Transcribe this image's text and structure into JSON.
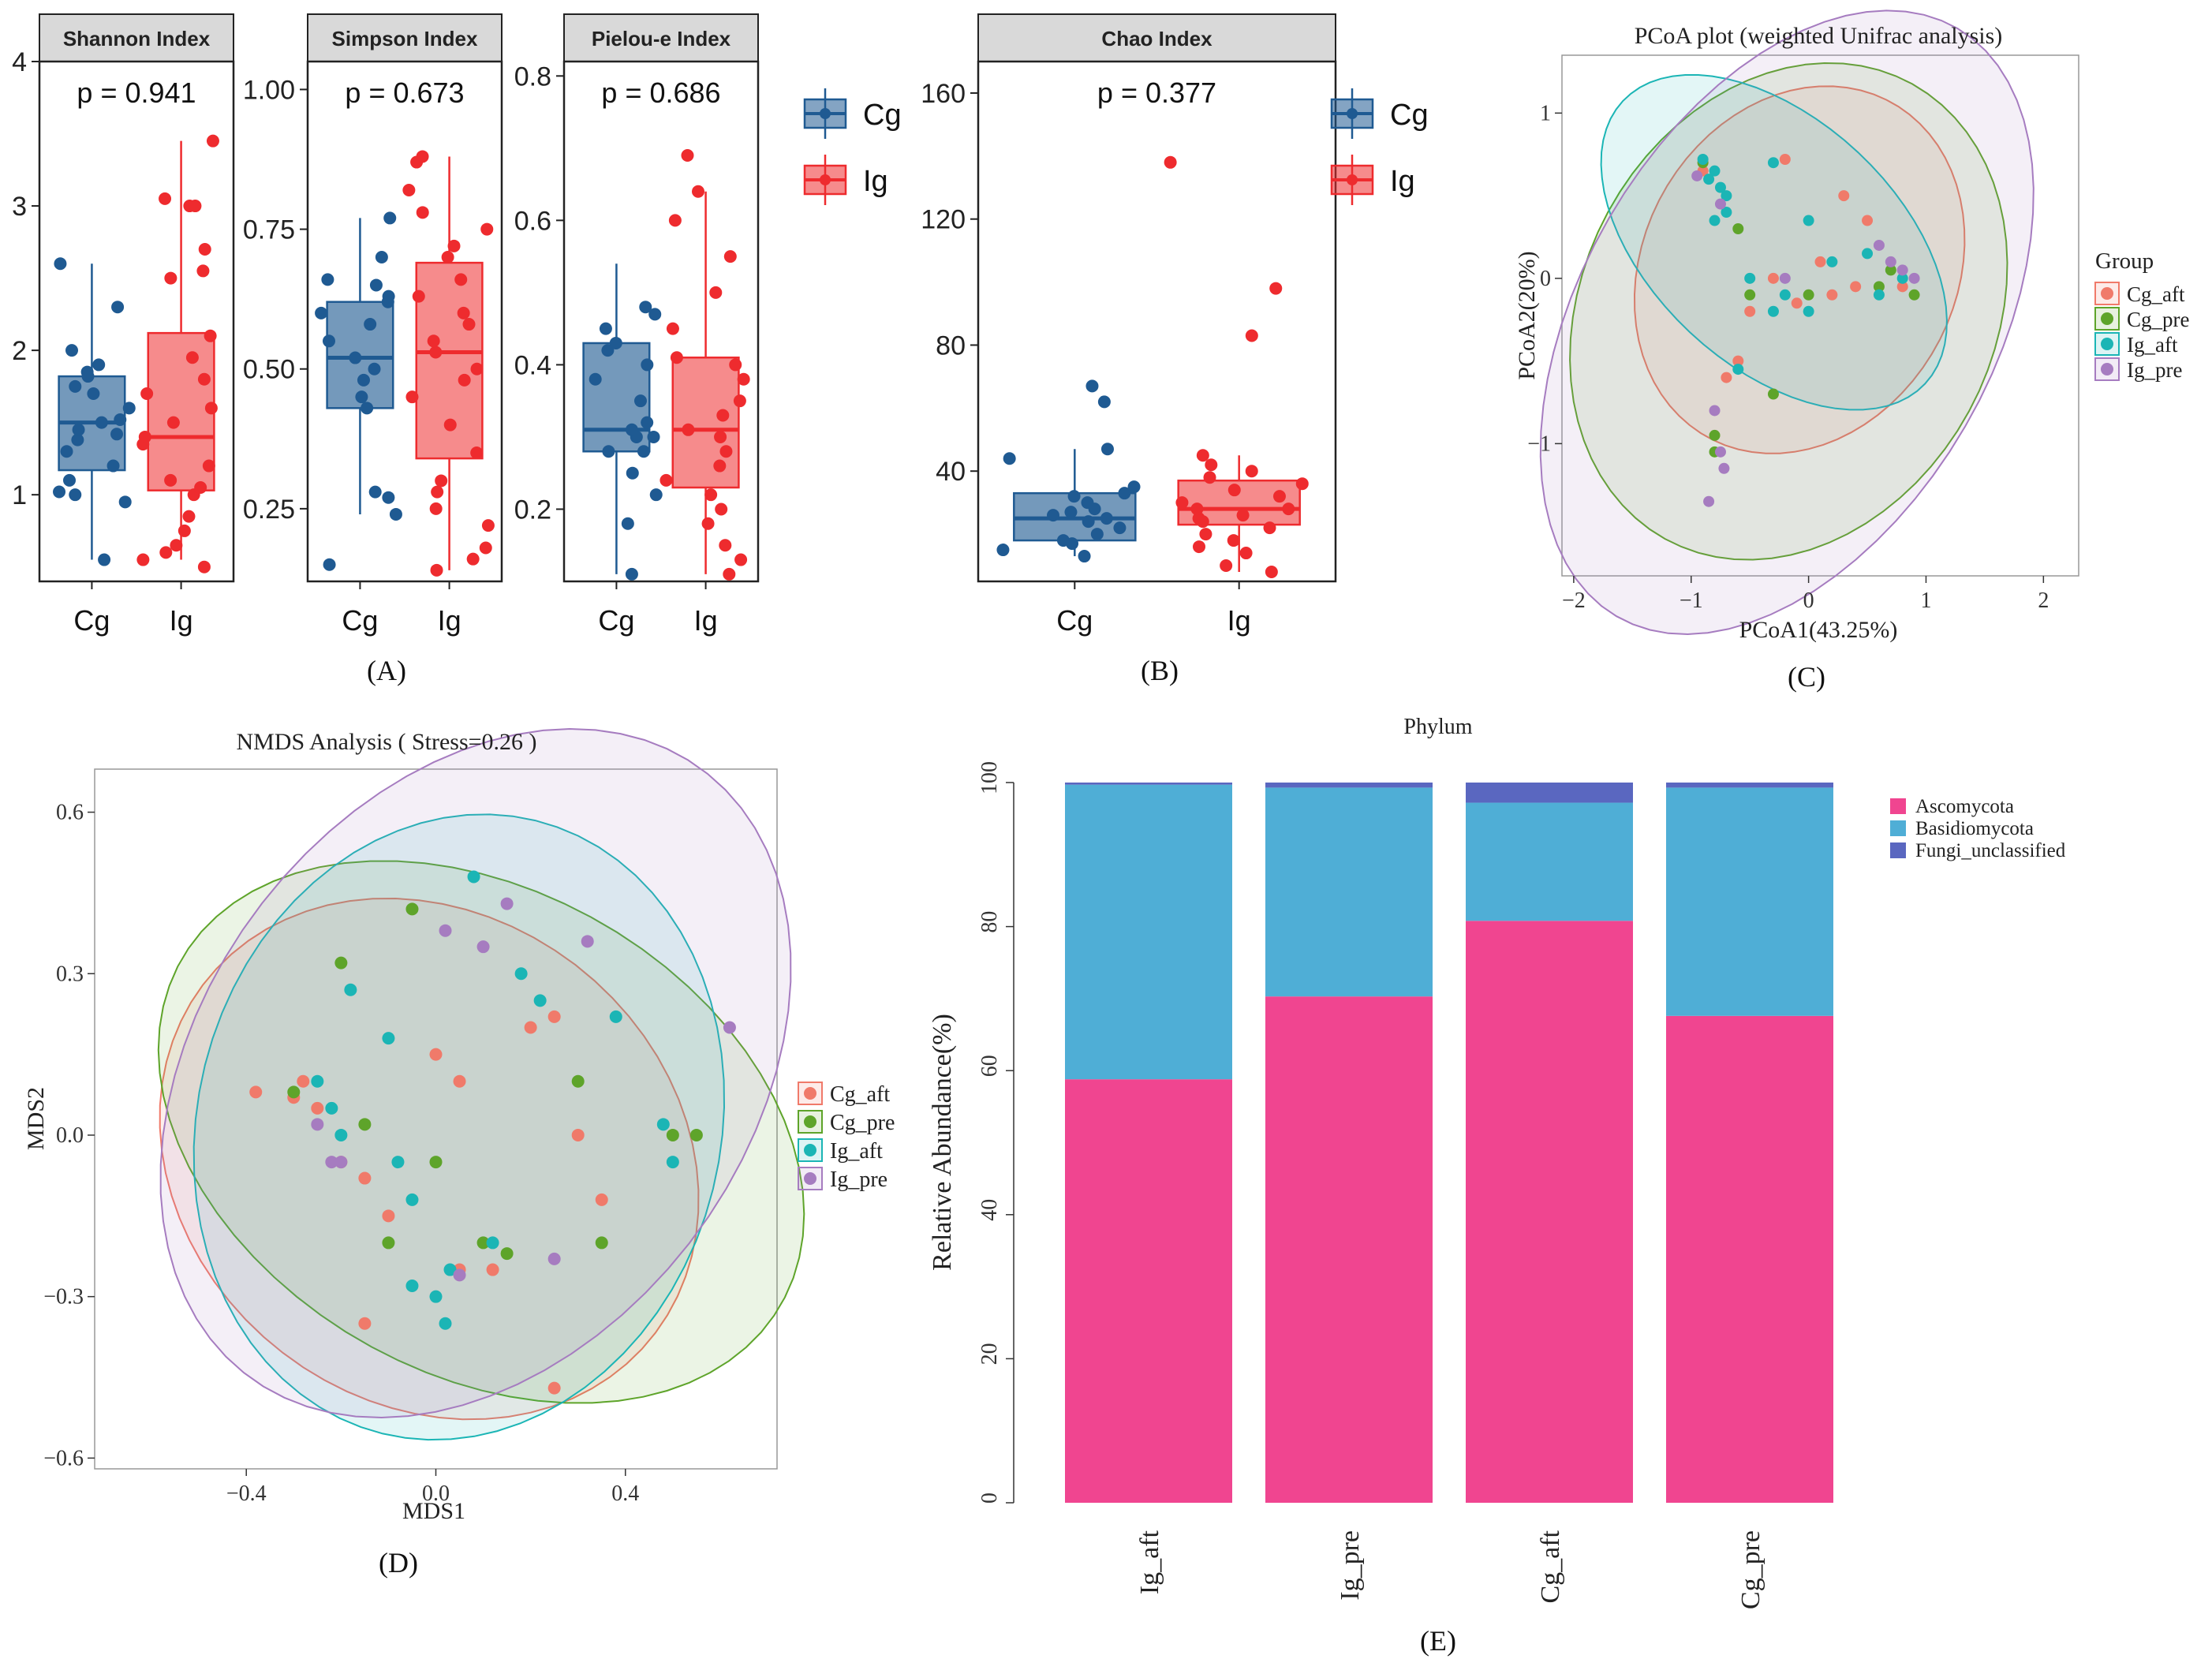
{
  "panels": {
    "A": "(A)",
    "B": "(B)",
    "C": "(C)",
    "D": "(D)",
    "E": "(E)"
  },
  "colors": {
    "cg_box": "#1f5a92",
    "ig_box": "#ee2b2e",
    "cg_aft": "#f07a6a",
    "cg_pre": "#5ea42a",
    "ig_aft": "#1bb5b5",
    "ig_pre": "#a67cc0",
    "ascomycota": "#f04590",
    "basidiomycota": "#4faed6",
    "fungi_unclassified": "#5a67c0"
  },
  "chart_data": [
    {
      "id": "shannon",
      "type": "box",
      "title": "Shannon Index",
      "annotation": "p = 0.941",
      "categories": [
        "Cg",
        "Ig"
      ],
      "ylim": [
        0.4,
        4.0
      ],
      "yticks": [
        1,
        2,
        3,
        4
      ],
      "boxes": [
        {
          "group": "Cg",
          "min": 0.55,
          "q1": 1.17,
          "median": 1.5,
          "q3": 1.82,
          "max": 2.6,
          "points": [
            0.55,
            0.95,
            1.0,
            1.02,
            1.1,
            1.2,
            1.3,
            1.38,
            1.42,
            1.45,
            1.5,
            1.52,
            1.6,
            1.7,
            1.75,
            1.82,
            1.85,
            1.9,
            2.0,
            2.3,
            2.6
          ]
        },
        {
          "group": "Ig",
          "min": 0.55,
          "q1": 1.03,
          "median": 1.4,
          "q3": 2.12,
          "max": 3.45,
          "points": [
            0.5,
            0.55,
            0.6,
            0.65,
            0.75,
            0.85,
            1.0,
            1.05,
            1.1,
            1.2,
            1.35,
            1.4,
            1.5,
            1.6,
            1.7,
            1.8,
            1.95,
            2.1,
            2.5,
            2.55,
            2.7,
            3.0,
            3.0,
            3.05,
            3.45
          ]
        }
      ]
    },
    {
      "id": "simpson",
      "type": "box",
      "title": "Simpson Index",
      "annotation": "p = 0.673",
      "categories": [
        "Cg",
        "Ig"
      ],
      "ylim": [
        0.12,
        1.05
      ],
      "yticks": [
        0.25,
        0.5,
        0.75,
        1.0
      ],
      "ytick_labels": [
        "0.25",
        "0.50",
        "0.75",
        "1.00"
      ],
      "boxes": [
        {
          "group": "Cg",
          "min": 0.24,
          "q1": 0.43,
          "median": 0.52,
          "q3": 0.62,
          "max": 0.77,
          "points": [
            0.15,
            0.24,
            0.27,
            0.28,
            0.43,
            0.45,
            0.48,
            0.5,
            0.52,
            0.55,
            0.58,
            0.6,
            0.62,
            0.63,
            0.65,
            0.66,
            0.7,
            0.77
          ]
        },
        {
          "group": "Ig",
          "min": 0.14,
          "q1": 0.34,
          "median": 0.53,
          "q3": 0.69,
          "max": 0.88,
          "points": [
            0.14,
            0.16,
            0.18,
            0.22,
            0.25,
            0.28,
            0.3,
            0.35,
            0.4,
            0.45,
            0.48,
            0.5,
            0.53,
            0.55,
            0.58,
            0.6,
            0.63,
            0.66,
            0.7,
            0.72,
            0.75,
            0.78,
            0.82,
            0.87,
            0.88
          ]
        }
      ]
    },
    {
      "id": "pielou",
      "type": "box",
      "title": "Pielou-e Index",
      "annotation": "p = 0.686",
      "categories": [
        "Cg",
        "Ig"
      ],
      "ylim": [
        0.1,
        0.82
      ],
      "yticks": [
        0.2,
        0.4,
        0.6,
        0.8
      ],
      "ytick_labels": [
        "0.2",
        "0.4",
        "0.6",
        "0.8"
      ],
      "boxes": [
        {
          "group": "Cg",
          "min": 0.11,
          "q1": 0.28,
          "median": 0.31,
          "q3": 0.43,
          "max": 0.54,
          "points": [
            0.11,
            0.18,
            0.22,
            0.25,
            0.28,
            0.28,
            0.3,
            0.3,
            0.31,
            0.32,
            0.35,
            0.38,
            0.4,
            0.42,
            0.43,
            0.45,
            0.47,
            0.48
          ]
        },
        {
          "group": "Ig",
          "min": 0.11,
          "q1": 0.23,
          "median": 0.31,
          "q3": 0.41,
          "max": 0.64,
          "points": [
            0.11,
            0.13,
            0.15,
            0.18,
            0.2,
            0.22,
            0.24,
            0.26,
            0.28,
            0.3,
            0.31,
            0.33,
            0.35,
            0.38,
            0.4,
            0.41,
            0.45,
            0.5,
            0.55,
            0.6,
            0.64,
            0.69
          ]
        }
      ]
    },
    {
      "id": "chao",
      "type": "box",
      "title": "Chao Index",
      "annotation": "p = 0.377",
      "categories": [
        "Cg",
        "Ig"
      ],
      "ylim": [
        5,
        170
      ],
      "yticks": [
        40,
        80,
        120,
        160
      ],
      "boxes": [
        {
          "group": "Cg",
          "min": 13,
          "q1": 18,
          "median": 25,
          "q3": 33,
          "max": 47,
          "points": [
            13,
            15,
            17,
            18,
            20,
            22,
            24,
            25,
            26,
            27,
            28,
            30,
            32,
            33,
            35,
            44,
            47,
            62,
            67
          ]
        },
        {
          "group": "Ig",
          "min": 8,
          "q1": 23,
          "median": 28,
          "q3": 37,
          "max": 45,
          "points": [
            8,
            10,
            14,
            16,
            18,
            20,
            22,
            24,
            25,
            26,
            28,
            28,
            30,
            32,
            34,
            36,
            38,
            40,
            42,
            45,
            83,
            98,
            138
          ]
        }
      ]
    },
    {
      "id": "pcoa",
      "type": "scatter",
      "title": "PCoA plot (weighted Unifrac analysis)",
      "xlabel": "PCoA1(43.25%)",
      "ylabel": "PCoA2(20%)",
      "xlim": [
        -2.1,
        2.3
      ],
      "ylim": [
        -1.8,
        1.35
      ],
      "xticks": [
        -2,
        -1,
        0,
        1,
        2
      ],
      "yticks": [
        -1,
        0,
        1
      ],
      "xtick_labels": [
        "−2",
        "−1",
        "0",
        "1",
        "2"
      ],
      "ytick_labels": [
        "−1",
        "0",
        "1"
      ],
      "legend_title": "Group",
      "groups": [
        {
          "name": "Cg_aft",
          "points": [
            [
              -0.2,
              0.72
            ],
            [
              0.3,
              0.5
            ],
            [
              -0.9,
              0.65
            ],
            [
              0.5,
              0.35
            ],
            [
              0.1,
              0.1
            ],
            [
              -0.3,
              0.0
            ],
            [
              0.4,
              -0.05
            ],
            [
              -0.1,
              -0.15
            ],
            [
              0.2,
              -0.1
            ],
            [
              -0.6,
              -0.5
            ],
            [
              -0.7,
              -0.6
            ],
            [
              -0.5,
              -0.2
            ],
            [
              0.8,
              -0.05
            ]
          ]
        },
        {
          "name": "Cg_pre",
          "points": [
            [
              -0.9,
              0.7
            ],
            [
              -0.6,
              0.3
            ],
            [
              0.0,
              -0.1
            ],
            [
              -0.3,
              -0.7
            ],
            [
              -0.8,
              -0.95
            ],
            [
              -0.8,
              -1.05
            ],
            [
              0.6,
              -0.05
            ],
            [
              0.7,
              0.05
            ],
            [
              0.9,
              -0.1
            ],
            [
              -0.5,
              -0.1
            ]
          ]
        },
        {
          "name": "Ig_aft",
          "points": [
            [
              -0.9,
              0.72
            ],
            [
              -0.85,
              0.6
            ],
            [
              -0.8,
              0.65
            ],
            [
              -0.75,
              0.55
            ],
            [
              -0.7,
              0.5
            ],
            [
              -0.8,
              0.35
            ],
            [
              -0.7,
              0.4
            ],
            [
              -0.3,
              0.7
            ],
            [
              0.0,
              0.35
            ],
            [
              -0.5,
              0.0
            ],
            [
              -0.3,
              -0.2
            ],
            [
              0.0,
              -0.2
            ],
            [
              0.2,
              0.1
            ],
            [
              0.5,
              0.15
            ],
            [
              0.8,
              0.0
            ],
            [
              0.6,
              -0.1
            ],
            [
              -0.6,
              -0.55
            ],
            [
              -0.2,
              -0.1
            ]
          ]
        },
        {
          "name": "Ig_pre",
          "points": [
            [
              -0.95,
              0.62
            ],
            [
              -0.75,
              0.45
            ],
            [
              -0.8,
              -0.8
            ],
            [
              -0.75,
              -1.05
            ],
            [
              -0.72,
              -1.15
            ],
            [
              -0.85,
              -1.35
            ],
            [
              0.7,
              0.1
            ],
            [
              0.8,
              0.05
            ],
            [
              0.9,
              0.0
            ],
            [
              0.6,
              0.2
            ],
            [
              -0.2,
              0.0
            ]
          ]
        }
      ]
    },
    {
      "id": "nmds",
      "type": "scatter",
      "title": "NMDS Analysis ( Stress=0.26 )",
      "xlabel": "MDS1",
      "ylabel": "MDS2",
      "xlim": [
        -0.72,
        0.72
      ],
      "ylim": [
        -0.62,
        0.68
      ],
      "xticks": [
        -0.4,
        0.0,
        0.4
      ],
      "yticks": [
        -0.6,
        -0.3,
        0.0,
        0.3,
        0.6
      ],
      "xtick_labels": [
        "−0.4",
        "0.0",
        "0.4"
      ],
      "ytick_labels": [
        "−0.6",
        "−0.3",
        "0.0",
        "0.3",
        "0.6"
      ],
      "groups": [
        {
          "name": "Cg_aft",
          "points": [
            [
              -0.38,
              0.08
            ],
            [
              -0.3,
              0.07
            ],
            [
              -0.28,
              0.1
            ],
            [
              -0.25,
              0.05
            ],
            [
              -0.2,
              -0.05
            ],
            [
              -0.15,
              -0.08
            ],
            [
              -0.1,
              -0.15
            ],
            [
              0.0,
              0.15
            ],
            [
              0.05,
              0.1
            ],
            [
              0.2,
              0.2
            ],
            [
              0.25,
              0.22
            ],
            [
              0.3,
              0.0
            ],
            [
              0.35,
              -0.12
            ],
            [
              0.12,
              -0.25
            ],
            [
              -0.15,
              -0.35
            ],
            [
              0.25,
              -0.47
            ],
            [
              0.05,
              -0.25
            ]
          ]
        },
        {
          "name": "Cg_pre",
          "points": [
            [
              -0.2,
              0.32
            ],
            [
              -0.15,
              0.02
            ],
            [
              -0.1,
              -0.2
            ],
            [
              -0.05,
              0.42
            ],
            [
              0.0,
              -0.05
            ],
            [
              0.1,
              -0.2
            ],
            [
              0.15,
              -0.22
            ],
            [
              0.3,
              0.1
            ],
            [
              0.35,
              -0.2
            ],
            [
              0.5,
              0.0
            ],
            [
              0.55,
              0.0
            ],
            [
              -0.3,
              0.08
            ]
          ]
        },
        {
          "name": "Ig_aft",
          "points": [
            [
              -0.25,
              0.1
            ],
            [
              -0.22,
              0.05
            ],
            [
              -0.2,
              0.0
            ],
            [
              -0.18,
              0.27
            ],
            [
              -0.1,
              0.18
            ],
            [
              -0.08,
              -0.05
            ],
            [
              -0.05,
              -0.12
            ],
            [
              0.0,
              -0.3
            ],
            [
              0.03,
              -0.25
            ],
            [
              0.08,
              0.48
            ],
            [
              0.12,
              -0.2
            ],
            [
              0.18,
              0.3
            ],
            [
              0.22,
              0.25
            ],
            [
              0.38,
              0.22
            ],
            [
              0.48,
              0.02
            ],
            [
              0.5,
              -0.05
            ],
            [
              -0.05,
              -0.28
            ],
            [
              0.02,
              -0.35
            ]
          ]
        },
        {
          "name": "Ig_pre",
          "points": [
            [
              -0.25,
              0.02
            ],
            [
              -0.22,
              -0.05
            ],
            [
              -0.2,
              -0.05
            ],
            [
              0.02,
              0.38
            ],
            [
              0.1,
              0.35
            ],
            [
              0.15,
              0.43
            ],
            [
              0.32,
              0.36
            ],
            [
              0.62,
              0.2
            ],
            [
              0.05,
              -0.26
            ],
            [
              0.25,
              -0.23
            ]
          ]
        }
      ]
    },
    {
      "id": "phylum",
      "type": "bar",
      "stacked": true,
      "title": "Phylum",
      "xlabel": "",
      "ylabel": "Relative Abundance(%)",
      "categories": [
        "Ig_aft",
        "Ig_pre",
        "Cg_aft",
        "Cg_pre"
      ],
      "ylim": [
        0,
        100
      ],
      "yticks": [
        0,
        20,
        40,
        60,
        80,
        100
      ],
      "series": [
        {
          "name": "Ascomycota",
          "values": [
            58.8,
            70.3,
            80.8,
            67.6
          ]
        },
        {
          "name": "Basidiomycota",
          "values": [
            40.9,
            29.0,
            16.4,
            31.7
          ]
        },
        {
          "name": "Fungi_unclassified",
          "values": [
            0.3,
            0.7,
            2.8,
            0.7
          ]
        }
      ]
    }
  ],
  "legends": {
    "box_legend_a": [
      "Cg",
      "Ig"
    ],
    "box_legend_b": [
      "Cg",
      "Ig"
    ],
    "group_legend": [
      "Cg_aft",
      "Cg_pre",
      "Ig_aft",
      "Ig_pre"
    ],
    "phylum_legend": [
      "Ascomycota",
      "Basidiomycota",
      "Fungi_unclassified"
    ]
  }
}
